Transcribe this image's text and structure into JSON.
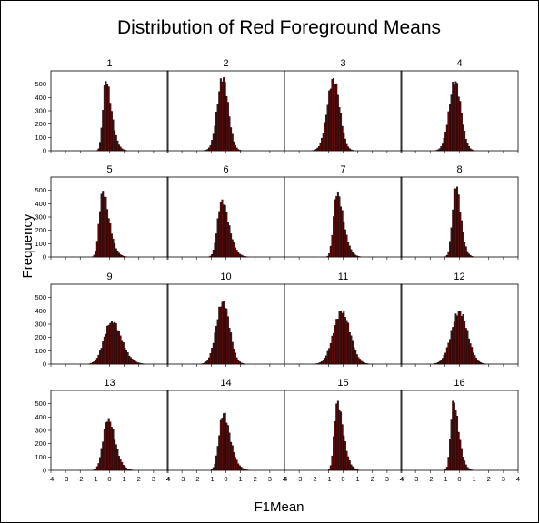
{
  "chart_data": {
    "type": "bar",
    "title": "Distribution of Red Foreground Means",
    "xlabel": "F1Mean",
    "ylabel": "Frequency",
    "xlim": [
      -4,
      4
    ],
    "ylim": [
      0,
      600
    ],
    "x_ticks": [
      "-4",
      "-3",
      "-2",
      "-1",
      "0",
      "1",
      "2",
      "3",
      "4"
    ],
    "y_ticks": [
      "0",
      "100",
      "200",
      "300",
      "400",
      "500"
    ],
    "grid": false,
    "layout": "4x4 panel grid",
    "colors": {
      "bar_fill": "#5a0c0c",
      "bar_edge": "#000000"
    },
    "panels": [
      {
        "label": "1",
        "mean": -0.45,
        "sd": 0.48,
        "skew": 3.0,
        "peak": 530
      },
      {
        "label": "2",
        "mean": -0.35,
        "sd": 0.4,
        "skew": 0.5,
        "peak": 550
      },
      {
        "label": "3",
        "mean": -0.5,
        "sd": 0.45,
        "skew": -0.5,
        "peak": 545
      },
      {
        "label": "4",
        "mean": -0.3,
        "sd": 0.4,
        "skew": 0.0,
        "peak": 520
      },
      {
        "label": "5",
        "mean": -0.7,
        "sd": 0.55,
        "skew": 3.0,
        "peak": 495
      },
      {
        "label": "6",
        "mean": -0.55,
        "sd": 0.6,
        "skew": 2.5,
        "peak": 430
      },
      {
        "label": "7",
        "mean": -0.65,
        "sd": 0.55,
        "skew": 3.0,
        "peak": 490
      },
      {
        "label": "8",
        "mean": -0.45,
        "sd": 0.42,
        "skew": 2.0,
        "peak": 540
      },
      {
        "label": "9",
        "mean": -0.25,
        "sd": 0.8,
        "skew": 1.5,
        "peak": 325
      },
      {
        "label": "10",
        "mean": -0.2,
        "sd": 0.45,
        "skew": 0.0,
        "peak": 470
      },
      {
        "label": "11",
        "mean": -0.3,
        "sd": 0.6,
        "skew": 0.5,
        "peak": 400
      },
      {
        "label": "12",
        "mean": 0.0,
        "sd": 0.55,
        "skew": 0.0,
        "peak": 395
      },
      {
        "label": "13",
        "mean": -0.4,
        "sd": 0.6,
        "skew": 2.0,
        "peak": 390
      },
      {
        "label": "14",
        "mean": -0.45,
        "sd": 0.6,
        "skew": 2.5,
        "peak": 430
      },
      {
        "label": "15",
        "mean": -0.6,
        "sd": 0.5,
        "skew": 3.0,
        "peak": 520
      },
      {
        "label": "16",
        "mean": -0.6,
        "sd": 0.45,
        "skew": 3.0,
        "peak": 520
      }
    ]
  }
}
